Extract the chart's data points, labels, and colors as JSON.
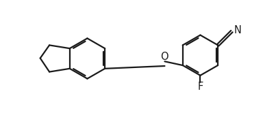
{
  "background_color": "#ffffff",
  "line_color": "#1a1a1a",
  "line_width": 1.6,
  "text_color": "#1a1a1a",
  "font_size": 10.5,
  "figsize": [
    3.84,
    1.72
  ],
  "dpi": 100,
  "r_ring": 0.62,
  "rcx": 6.3,
  "rcy": 0.55,
  "ilcx": 2.85,
  "ilcy": 0.45,
  "xlim": [
    0.2,
    8.2
  ],
  "ylim": [
    -0.75,
    1.65
  ]
}
